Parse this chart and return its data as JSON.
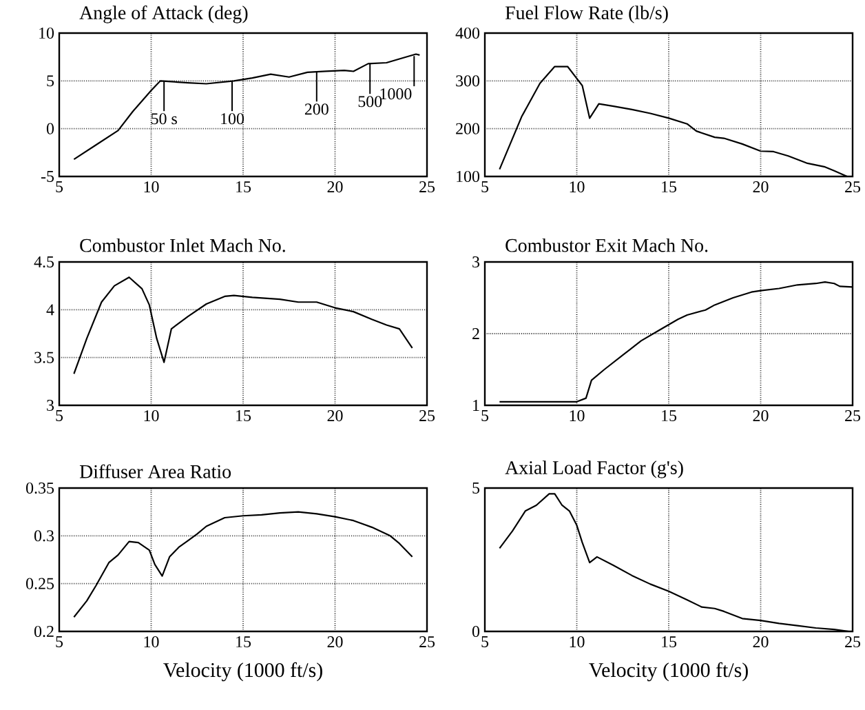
{
  "chart_data": [
    {
      "type": "line",
      "title": "Angle of Attack (deg)",
      "xlim": [
        5,
        25
      ],
      "xticks": [
        5,
        10,
        15,
        20,
        25
      ],
      "ylim": [
        -5,
        10
      ],
      "yticks": [
        -5,
        0,
        5,
        10
      ],
      "grid": true,
      "color": "#000000",
      "x": [
        5.8,
        7,
        8.2,
        9,
        10,
        10.5,
        12,
        13,
        14.5,
        15.5,
        16.5,
        17.5,
        18.5,
        19.5,
        20.5,
        21,
        21.8,
        22.8,
        23.5,
        24.4,
        24.6
      ],
      "values": [
        -3.2,
        -1.7,
        -0.2,
        1.8,
        4,
        5,
        4.8,
        4.7,
        5,
        5.3,
        5.7,
        5.4,
        5.9,
        6.0,
        6.1,
        6,
        6.8,
        6.9,
        7.3,
        7.8,
        7.7
      ],
      "annotations": [
        {
          "text": "50 s",
          "x": 10.7,
          "y": 5
        },
        {
          "text": "100",
          "x": 14.4,
          "y": 5
        },
        {
          "text": "200",
          "x": 19,
          "y": 6
        },
        {
          "text": "500",
          "x": 21.9,
          "y": 6.8
        },
        {
          "text": "1000",
          "x": 24.3,
          "y": 7.6
        }
      ]
    },
    {
      "type": "line",
      "title": "Fuel Flow Rate (lb/s)",
      "xlim": [
        5,
        25
      ],
      "xticks": [
        5,
        10,
        15,
        20,
        25
      ],
      "ylim": [
        100,
        400
      ],
      "yticks": [
        100,
        200,
        300,
        400
      ],
      "grid": true,
      "color": "#000000",
      "x": [
        5.8,
        7,
        8,
        8.8,
        9.5,
        10,
        10.3,
        10.7,
        11.2,
        12,
        13,
        14,
        15,
        16,
        16.5,
        17.5,
        18,
        19,
        20,
        20.7,
        21.5,
        22.5,
        23.5,
        24,
        24.7
      ],
      "values": [
        115,
        225,
        295,
        330,
        330,
        305,
        290,
        222,
        252,
        247,
        240,
        232,
        222,
        210,
        195,
        182,
        180,
        168,
        153,
        152,
        143,
        128,
        120,
        112,
        100
      ]
    },
    {
      "type": "line",
      "title": "Combustor Inlet Mach No.",
      "xlim": [
        5,
        25
      ],
      "xticks": [
        5,
        10,
        15,
        20,
        25
      ],
      "ylim": [
        3,
        4.5
      ],
      "yticks": [
        3,
        3.5,
        4,
        4.5
      ],
      "grid": true,
      "color": "#000000",
      "x": [
        5.8,
        6.5,
        7.3,
        8,
        8.8,
        9.5,
        9.9,
        10.3,
        10.7,
        11.1,
        12,
        13,
        14,
        14.5,
        15.5,
        17,
        18,
        19,
        20,
        21,
        22,
        22.8,
        23.5,
        24.2
      ],
      "values": [
        3.33,
        3.7,
        4.08,
        4.25,
        4.34,
        4.22,
        4.05,
        3.7,
        3.45,
        3.8,
        3.93,
        4.06,
        4.14,
        4.15,
        4.13,
        4.11,
        4.08,
        4.08,
        4.02,
        3.98,
        3.9,
        3.84,
        3.8,
        3.6
      ]
    },
    {
      "type": "line",
      "title": "Combustor Exit Mach No.",
      "xlim": [
        5,
        25
      ],
      "xticks": [
        5,
        10,
        15,
        20,
        25
      ],
      "ylim": [
        1,
        3
      ],
      "yticks": [
        1,
        2,
        3
      ],
      "grid": true,
      "color": "#000000",
      "x": [
        5.8,
        10,
        10.5,
        10.8,
        11.5,
        12.5,
        13.5,
        14.5,
        15.5,
        16,
        17,
        17.5,
        18.5,
        19.5,
        20,
        21,
        22,
        23,
        23.5,
        24,
        24.3,
        25
      ],
      "values": [
        1.05,
        1.05,
        1.1,
        1.35,
        1.5,
        1.7,
        1.9,
        2.05,
        2.2,
        2.26,
        2.33,
        2.4,
        2.5,
        2.58,
        2.6,
        2.63,
        2.68,
        2.7,
        2.72,
        2.7,
        2.66,
        2.65
      ]
    },
    {
      "type": "line",
      "title": "Diffuser Area Ratio",
      "xlabel": "Velocity (1000 ft/s)",
      "xlim": [
        5,
        25
      ],
      "xticks": [
        5,
        10,
        15,
        20,
        25
      ],
      "ylim": [
        0.2,
        0.35
      ],
      "yticks": [
        0.2,
        0.25,
        0.3,
        0.35
      ],
      "grid": true,
      "color": "#000000",
      "x": [
        5.8,
        6.5,
        7,
        7.7,
        8.2,
        8.8,
        9.3,
        9.9,
        10.2,
        10.6,
        11,
        11.5,
        12,
        12.5,
        13,
        14,
        15,
        16,
        17,
        18,
        19,
        20,
        21,
        22,
        23,
        23.5,
        24.2
      ],
      "values": [
        0.215,
        0.232,
        0.248,
        0.272,
        0.28,
        0.294,
        0.293,
        0.285,
        0.27,
        0.258,
        0.278,
        0.288,
        0.295,
        0.302,
        0.31,
        0.319,
        0.321,
        0.322,
        0.324,
        0.325,
        0.323,
        0.32,
        0.316,
        0.309,
        0.3,
        0.292,
        0.278
      ]
    },
    {
      "type": "line",
      "title": "Axial Load Factor (g's)",
      "xlabel": "Velocity (1000 ft/s)",
      "xlim": [
        5,
        25
      ],
      "xticks": [
        5,
        10,
        15,
        20,
        25
      ],
      "ylim": [
        0,
        5
      ],
      "yticks": [
        0,
        5
      ],
      "grid": "x",
      "color": "#000000",
      "x": [
        5.8,
        6.5,
        7.2,
        7.8,
        8.5,
        8.8,
        9.2,
        9.6,
        10,
        10.3,
        10.7,
        11.1,
        12,
        13,
        14,
        15,
        16,
        16.8,
        17.5,
        18,
        19,
        20,
        21,
        22,
        23,
        24,
        24.8
      ],
      "values": [
        2.9,
        3.5,
        4.2,
        4.4,
        4.8,
        4.8,
        4.4,
        4.2,
        3.7,
        3.1,
        2.4,
        2.6,
        2.3,
        1.95,
        1.65,
        1.4,
        1.1,
        0.85,
        0.8,
        0.7,
        0.45,
        0.38,
        0.28,
        0.2,
        0.12,
        0.07,
        0
      ]
    }
  ]
}
